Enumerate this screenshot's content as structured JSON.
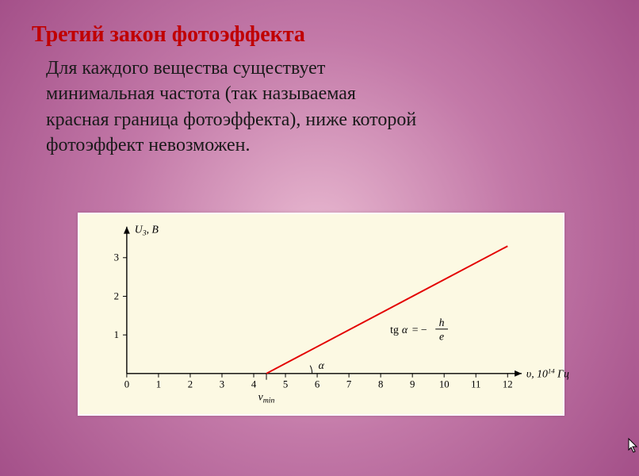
{
  "title": {
    "text": "Третий закон фотоэффекта",
    "color": "#c00000",
    "fontsize": 28
  },
  "body": {
    "lines": [
      "Для каждого вещества существует",
      "минимальная частота (так называемая",
      "красная граница фотоэффекта), ниже которой",
      "фотоэффект невозможен."
    ],
    "color": "#1a1a1a",
    "fontsize": 24,
    "lineheight": 1.35
  },
  "chart": {
    "type": "line",
    "background_color": "#fcf9e3",
    "axis_color": "#000000",
    "line_color": "#e30000",
    "line_width": 2,
    "x": {
      "label": "υ, 10¹⁴ Гц",
      "ticks": [
        0,
        1,
        2,
        3,
        4,
        5,
        6,
        7,
        8,
        9,
        10,
        11,
        12
      ],
      "xlim": [
        0,
        12
      ],
      "tick_fontsize": 13
    },
    "y": {
      "label": "U₃, В",
      "ticks": [
        1,
        2,
        3
      ],
      "ylim": [
        0,
        3.6
      ],
      "tick_fontsize": 13
    },
    "line_start": {
      "x": 4.4,
      "y": 0
    },
    "line_end": {
      "x": 12.0,
      "y": 3.3
    },
    "angle_label": "α",
    "angle_vertex_x": 5.3,
    "xmin_label": "νmin",
    "formula": "tgα = − h / e",
    "formula_fontsize": 14,
    "label_fontsize": 14
  }
}
